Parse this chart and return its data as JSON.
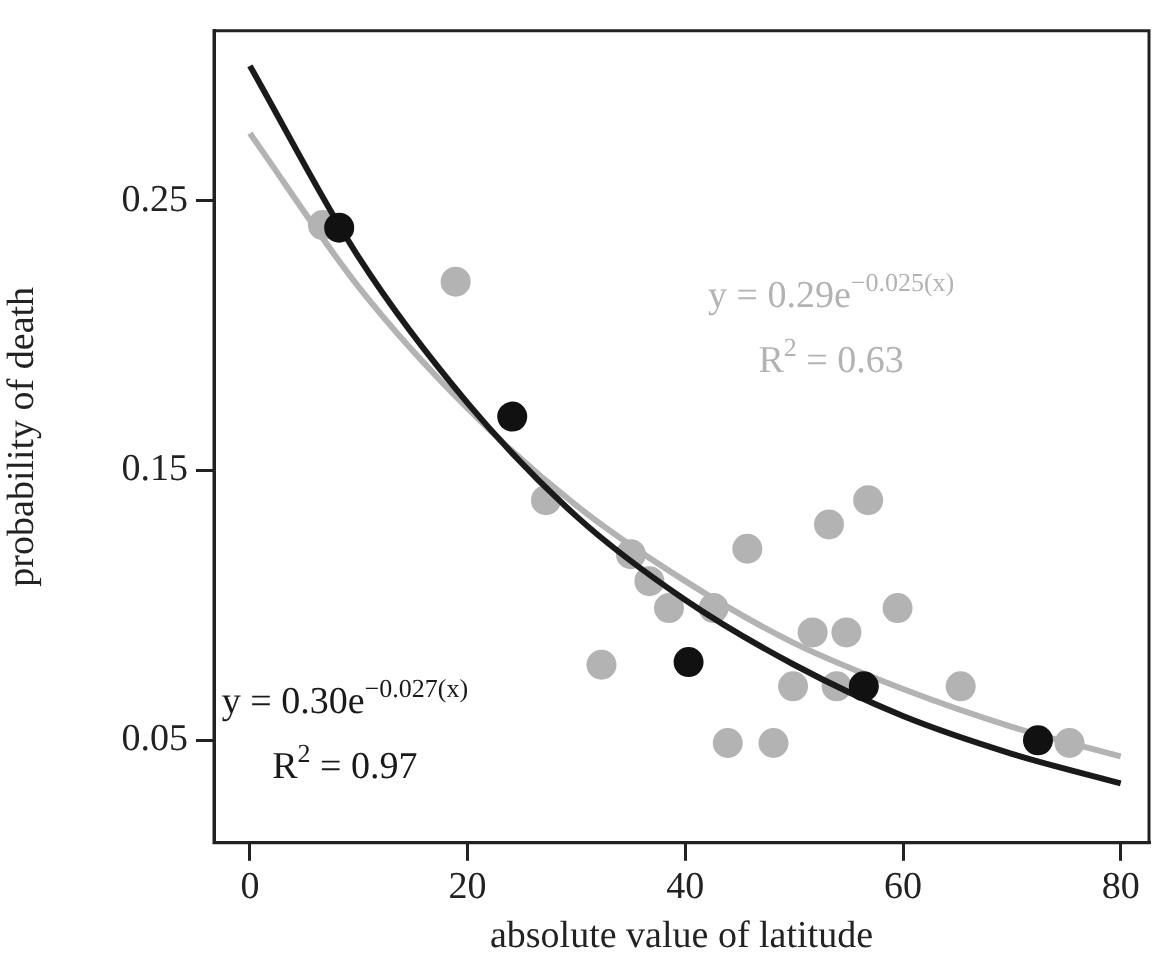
{
  "chart_data": {
    "type": "scatter",
    "xlabel": "absolute value of latitude",
    "ylabel": "probability of death",
    "xlim": [
      -3.3,
      82.6
    ],
    "ylim": [
      0.012,
      0.313
    ],
    "xticks": [
      0,
      20,
      40,
      60,
      80
    ],
    "yticks": [
      0.05,
      0.15,
      0.25
    ],
    "marker": "circle",
    "grid": false,
    "legend": false,
    "series": [
      {
        "color": "#b3b3b3",
        "x": [
          6.7,
          18.9,
          27.2,
          32.3,
          35.0,
          36.7,
          38.5,
          42.6,
          43.9,
          45.7,
          48.1,
          49.9,
          51.7,
          53.2,
          53.9,
          54.8,
          56.8,
          59.5,
          65.3,
          75.3
        ],
        "values": [
          0.241,
          0.22,
          0.139,
          0.078,
          0.119,
          0.109,
          0.099,
          0.099,
          0.049,
          0.121,
          0.049,
          0.07,
          0.09,
          0.13,
          0.07,
          0.09,
          0.139,
          0.099,
          0.07,
          0.049
        ]
      },
      {
        "type": "line",
        "marker": "none",
        "color": "#b3b3b3",
        "x": [
          0,
          10,
          20,
          30,
          40,
          50,
          60,
          70,
          80
        ],
        "values": [
          0.275,
          0.218,
          0.173,
          0.137,
          0.109,
          0.086,
          0.069,
          0.055,
          0.044
        ]
      },
      {
        "type": "line",
        "marker": "none",
        "color": "#1a1a1a",
        "x": [
          0,
          10,
          20,
          30,
          40,
          50,
          60,
          70,
          80
        ],
        "values": [
          0.3,
          0.229,
          0.175,
          0.133,
          0.102,
          0.078,
          0.059,
          0.045,
          0.034
        ]
      },
      {
        "color": "#111111",
        "x": [
          8.2,
          24.1,
          40.3,
          56.4,
          72.4
        ],
        "values": [
          0.24,
          0.17,
          0.079,
          0.07,
          0.05
        ]
      }
    ],
    "annotations": [
      "y = 0.29e$^{−0.025(x)}$",
      "R$^{2}$ = 0.63",
      "y = 0.30e$^{−0.027(x)}$",
      "R$^{2}$ = 0.97"
    ]
  }
}
